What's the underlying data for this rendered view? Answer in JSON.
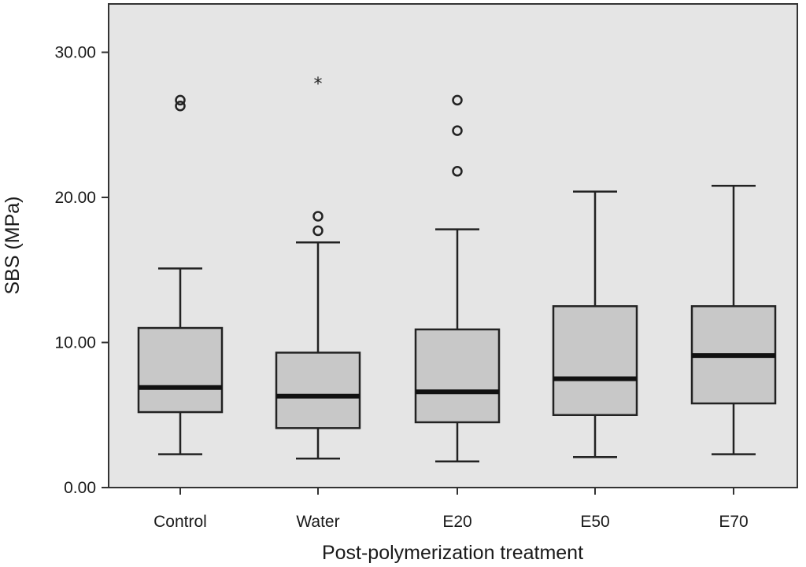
{
  "chart_data": {
    "type": "box",
    "xlabel": "Post-polymerization treatment",
    "ylabel": "SBS (MPa)",
    "ylim": [
      0,
      30.5
    ],
    "yticks": [
      0,
      10,
      20,
      30
    ],
    "ytick_labels": [
      "0.00",
      "10.00",
      "20.00",
      "30.00"
    ],
    "grid": false,
    "plot_background": "#e5e5e5",
    "box_fill": "#c8c8c8",
    "categories": [
      "Control",
      "Water",
      "E20",
      "E50",
      "E70"
    ],
    "boxes": [
      {
        "category": "Control",
        "whisker_low": 2.3,
        "q1": 5.2,
        "median": 6.9,
        "q3": 11.0,
        "whisker_high": 15.1,
        "outliers": [
          26.3,
          26.7
        ],
        "extremes": []
      },
      {
        "category": "Water",
        "whisker_low": 2.0,
        "q1": 4.1,
        "median": 6.3,
        "q3": 9.3,
        "whisker_high": 16.9,
        "outliers": [
          17.7,
          18.7
        ],
        "extremes": [
          27.9
        ]
      },
      {
        "category": "E20",
        "whisker_low": 1.8,
        "q1": 4.5,
        "median": 6.6,
        "q3": 10.9,
        "whisker_high": 17.8,
        "outliers": [
          21.8,
          24.6,
          26.7
        ],
        "extremes": []
      },
      {
        "category": "E50",
        "whisker_low": 2.1,
        "q1": 5.0,
        "median": 7.5,
        "q3": 12.5,
        "whisker_high": 20.4,
        "outliers": [],
        "extremes": []
      },
      {
        "category": "E70",
        "whisker_low": 2.3,
        "q1": 5.8,
        "median": 9.1,
        "q3": 12.5,
        "whisker_high": 20.8,
        "outliers": [],
        "extremes": []
      }
    ]
  }
}
